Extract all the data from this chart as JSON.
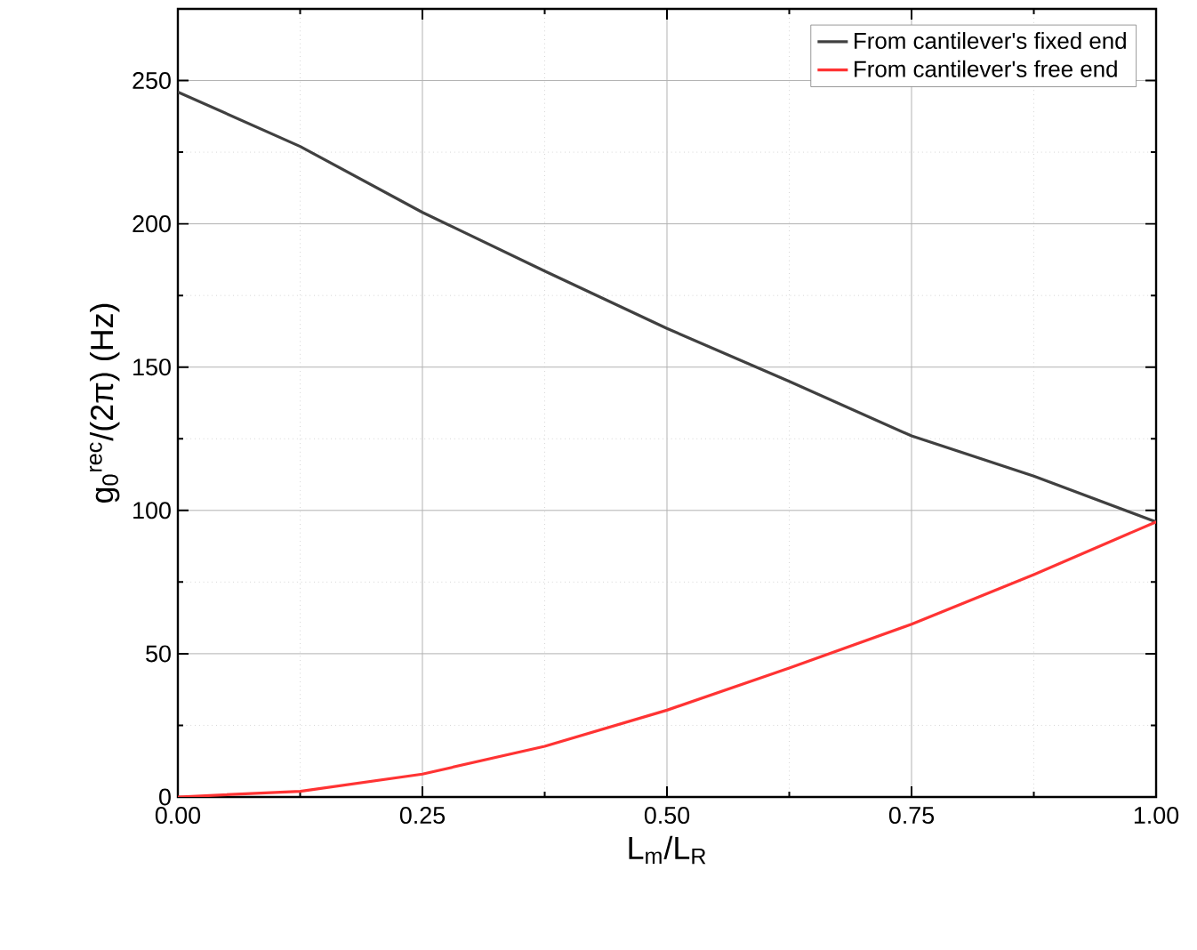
{
  "chart_data": {
    "type": "line",
    "xlabel": "L$_{m}$/L$_{R}$",
    "ylabel": "g$_{0}$$^{rec}$/(2π) (Hz)",
    "xlim": [
      0,
      1
    ],
    "ylim": [
      0,
      275
    ],
    "xticks": [
      {
        "value": 0,
        "label": "0.00"
      },
      {
        "value": 0.25,
        "label": "0.25"
      },
      {
        "value": 0.5,
        "label": "0.50"
      },
      {
        "value": 0.75,
        "label": "0.75"
      },
      {
        "value": 1,
        "label": "1.00"
      }
    ],
    "yticks": [
      0,
      50,
      100,
      150,
      200,
      250
    ],
    "grid": true,
    "legend": "top right",
    "marker": "none",
    "line_style": "solid",
    "series": [
      {
        "name": "From cantilever's fixed end",
        "color": "#404040",
        "x": [
          0,
          0.125,
          0.25,
          0.375,
          0.5,
          0.625,
          0.75,
          0.875,
          1
        ],
        "values": [
          246,
          227,
          204,
          183.5,
          163.5,
          145,
          126,
          112,
          96
        ]
      },
      {
        "name": "From cantilever's free end",
        "color": "#ff3333",
        "x": [
          0,
          0.125,
          0.25,
          0.375,
          0.5,
          0.625,
          0.75,
          0.875,
          1
        ],
        "values": [
          0,
          2,
          8,
          17.7,
          30.3,
          45,
          60.3,
          77.6,
          96
        ]
      }
    ]
  }
}
